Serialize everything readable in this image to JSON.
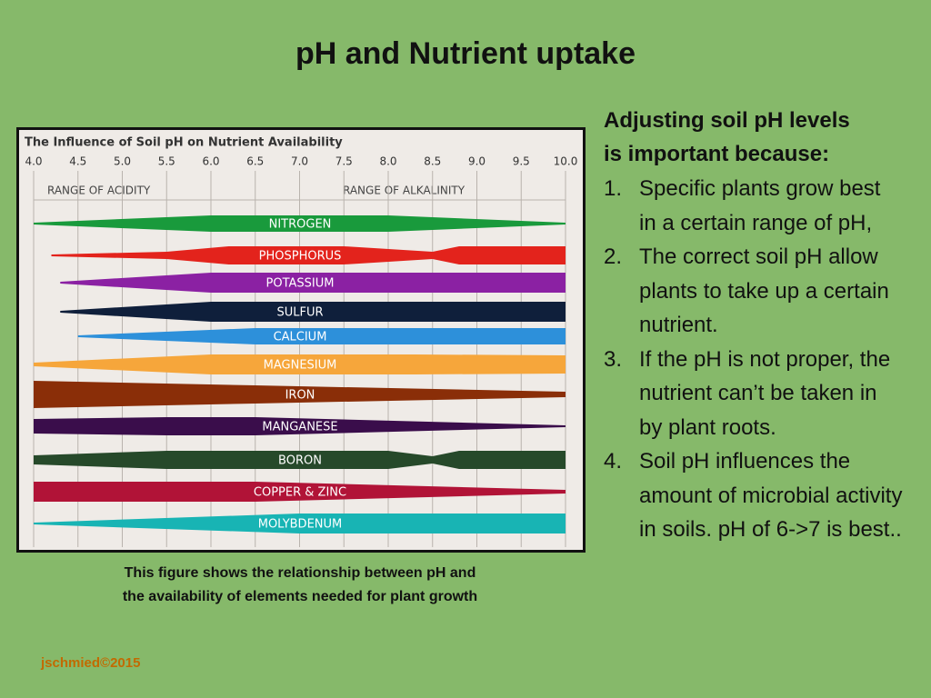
{
  "slide": {
    "title": "pH and Nutrient uptake",
    "figure": {
      "title": "The Influence of Soil pH on Nutrient Availability",
      "ph_ticks": [
        "4.0",
        "4.5",
        "5.0",
        "5.5",
        "6.0",
        "6.5",
        "7.0",
        "7.5",
        "8.0",
        "8.5",
        "9.0",
        "9.5",
        "10.0"
      ],
      "range_acidity": "RANGE OF ACIDITY",
      "range_alkalinity": "RANGE OF ALKALINITY",
      "nutrients": [
        "NITROGEN",
        "PHOSPHORUS",
        "POTASSIUM",
        "SULFUR",
        "CALCIUM",
        "MAGNESIUM",
        "IRON",
        "MANGANESE",
        "BORON",
        "COPPER & ZINC",
        "MOLYBDENUM"
      ]
    },
    "caption": [
      "This figure shows the relationship between pH and",
      "the availability of elements needed for plant growth"
    ],
    "heading": [
      "Adjusting soil pH levels",
      "is important because:"
    ],
    "list": [
      {
        "number": "1.",
        "text": "Specific plants grow best in a certain range of pH,"
      },
      {
        "number": "2.",
        "text": "The correct soil pH allow  plants to take up a certain nutrient."
      },
      {
        "number": "3.",
        "text": "If the pH is not proper, the nutrient can’t be taken in by plant roots."
      },
      {
        "number": "4.",
        "text": "Soil pH influences the amount of microbial activity in soils.  pH of 6->7 is best.."
      }
    ],
    "footer": "jschmied©2015"
  }
}
